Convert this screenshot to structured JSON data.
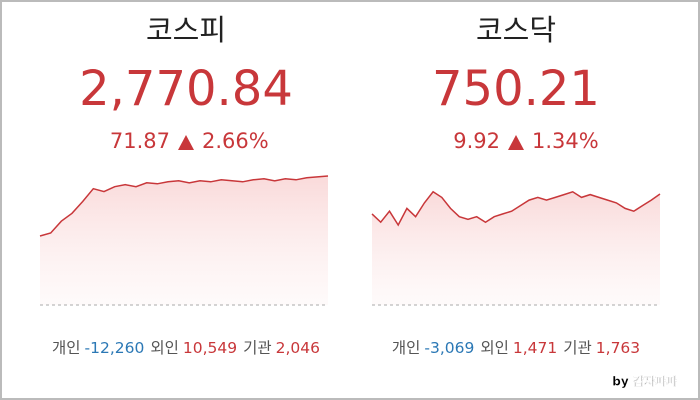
{
  "panels": [
    {
      "title": "코스피",
      "value": "2,770.84",
      "change": "71.87",
      "change_pct": "2.66%",
      "chart": {
        "values": [
          2710,
          2713,
          2725,
          2733,
          2745,
          2758,
          2755,
          2760,
          2762,
          2760,
          2764,
          2763,
          2765,
          2766,
          2764,
          2766,
          2765,
          2767,
          2766,
          2765,
          2767,
          2768,
          2766,
          2768,
          2767,
          2769,
          2770,
          2770.84
        ],
        "ylim": [
          2640,
          2780
        ],
        "color": "#c8373a"
      },
      "flows": [
        {
          "label": "개인",
          "value": "-12,260"
        },
        {
          "label": "외인",
          "value": "10,549"
        },
        {
          "label": "기관",
          "value": "2,046"
        }
      ]
    },
    {
      "title": "코스닥",
      "value": "750.21",
      "change": "9.92",
      "change_pct": "1.34%",
      "chart": {
        "values": [
          743,
          740,
          744,
          739,
          745,
          742,
          747,
          751,
          749,
          745,
          742,
          741,
          742,
          740,
          742,
          743,
          744,
          746,
          748,
          749,
          748,
          749,
          750,
          751,
          749,
          750,
          749,
          748,
          747,
          745,
          744,
          746,
          748,
          750.21
        ],
        "ylim": [
          710,
          760
        ],
        "color": "#c8373a"
      },
      "flows": [
        {
          "label": "개인",
          "value": "-3,069"
        },
        {
          "label": "외인",
          "value": "1,471"
        },
        {
          "label": "기관",
          "value": "1,763"
        }
      ]
    }
  ],
  "watermark": "by 갑자파파"
}
